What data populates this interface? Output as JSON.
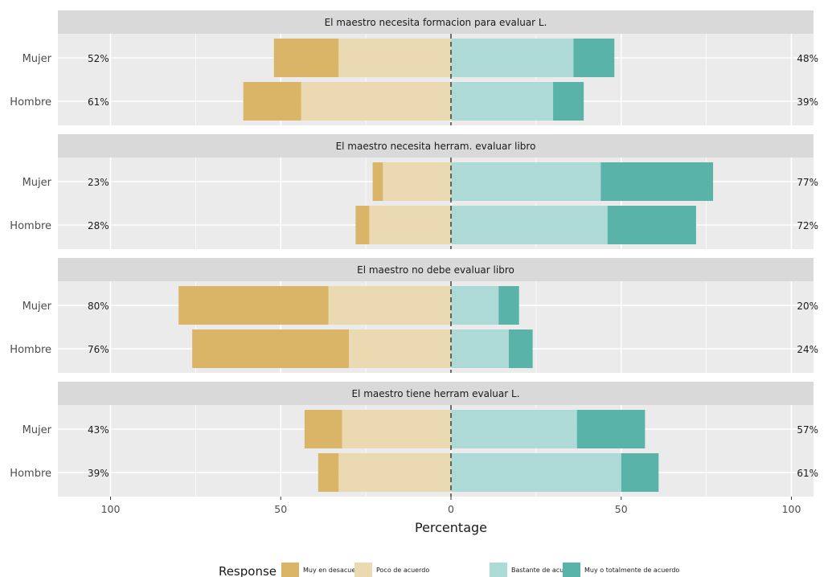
{
  "chart_data": {
    "type": "bar",
    "orientation": "horizontal",
    "style": "diverging likert",
    "xlabel": "Percentage",
    "xlim": [
      -100,
      100
    ],
    "xticks": [
      -100,
      -50,
      0,
      50,
      100
    ],
    "xtick_labels": [
      "100",
      "50",
      "0",
      "50",
      "100"
    ],
    "grid": true,
    "legend": {
      "title": "Response",
      "position": "bottom",
      "entries": [
        "Muy en desacuerdo",
        "Poco de acuerdo",
        "Bastante de acuerdo",
        "Muy o totalmente de acuerdo"
      ]
    },
    "colors": {
      "Muy en desacuerdo": "#dab467",
      "Poco de acuerdo": "#ebdab1",
      "Bastante de acuerdo": "#add9d6",
      "Muy o totalmente de acuerdo": "#5ab3a9",
      "panel_bg": "#ebebeb",
      "strip_bg": "#d9d9d9",
      "center_line": "#333333"
    },
    "panels": [
      {
        "title": "El maestro necesita formacion para evaluar L.",
        "rows": [
          {
            "label": "Mujer",
            "values": [
              19,
              33,
              36,
              12
            ],
            "left_label": "52%",
            "right_label": "48%"
          },
          {
            "label": "Hombre",
            "values": [
              17,
              44,
              30,
              9
            ],
            "left_label": "61%",
            "right_label": "39%"
          }
        ]
      },
      {
        "title": "El maestro necesita herram. evaluar libro",
        "rows": [
          {
            "label": "Mujer",
            "values": [
              3,
              20,
              44,
              33
            ],
            "left_label": "23%",
            "right_label": "77%"
          },
          {
            "label": "Hombre",
            "values": [
              4,
              24,
              46,
              26
            ],
            "left_label": "28%",
            "right_label": "72%"
          }
        ]
      },
      {
        "title": "El maestro no debe evaluar libro",
        "rows": [
          {
            "label": "Mujer",
            "values": [
              44,
              36,
              14,
              6
            ],
            "left_label": "80%",
            "right_label": "20%"
          },
          {
            "label": "Hombre",
            "values": [
              46,
              30,
              17,
              7
            ],
            "left_label": "76%",
            "right_label": "24%"
          }
        ]
      },
      {
        "title": "El maestro tiene herram evaluar L.",
        "rows": [
          {
            "label": "Mujer",
            "values": [
              11,
              32,
              37,
              20
            ],
            "left_label": "43%",
            "right_label": "57%"
          },
          {
            "label": "Hombre",
            "values": [
              6,
              33,
              50,
              11
            ],
            "left_label": "39%",
            "right_label": "61%"
          }
        ]
      }
    ]
  }
}
